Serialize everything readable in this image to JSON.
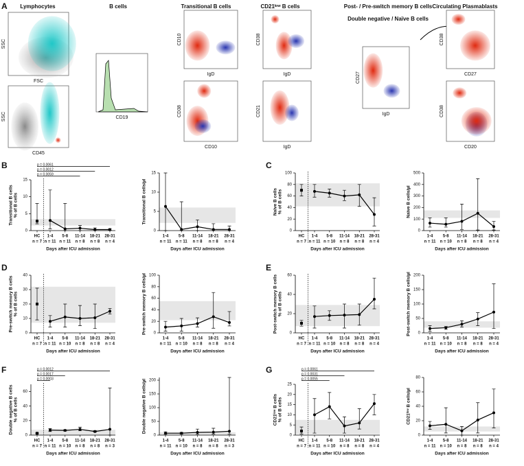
{
  "panels": [
    "A",
    "B",
    "C",
    "D",
    "E",
    "F",
    "G"
  ],
  "flow": {
    "titles": [
      "Lymphocytes",
      "B cells",
      "Transitional B cells",
      "CD21ˡᵒʷ B cells",
      "Post- / Pre-switch  memory B cells",
      "Double negative / Naïve B cells",
      "Circulating Plasmablasts"
    ],
    "plots": [
      {
        "x": "FSC",
        "y": "SSC"
      },
      {
        "x": "CD45",
        "y": "SSC"
      },
      {
        "x": "CD19"
      },
      {
        "x": "IgD",
        "y": "CD10"
      },
      {
        "x": "CD10",
        "y": "CD38"
      },
      {
        "x": "IgD",
        "y": "CD38"
      },
      {
        "x": "IgD",
        "y": "CD21"
      },
      {
        "x": "IgD",
        "y": "CD27"
      },
      {
        "x": "CD27",
        "y": "CD38"
      },
      {
        "x": "CD20",
        "y": "CD38"
      }
    ]
  },
  "chart_data": [
    {
      "type": "line",
      "ylabel": [
        "Transitional B cells",
        "% of B cells"
      ],
      "xlabel": "Days after ICU admission",
      "categories": [
        "HC",
        "1-4",
        "5-8",
        "11-14",
        "18-21",
        "28-31"
      ],
      "n": [
        "n = 7",
        "n = 11",
        "n = 11",
        "n = 8",
        "n = 8",
        "n = 4"
      ],
      "values": [
        2.8,
        3.0,
        0.5,
        0.7,
        0.3,
        0.3
      ],
      "err_low": [
        2,
        0.5,
        0,
        0,
        0,
        0.1
      ],
      "err_high": [
        8,
        12,
        8,
        1.5,
        0.8,
        0.6
      ],
      "reference_range": [
        1.5,
        3.4
      ],
      "ylim": [
        0,
        15
      ],
      "yticks": [
        0,
        5,
        10,
        15
      ],
      "separate_first": true,
      "color": "#000000",
      "band_color": "#e6e6e6",
      "annotations": [
        {
          "text": "p = 0.0061",
          "from": "HC",
          "to": "28-31"
        },
        {
          "text": "p = 0.0012",
          "from": "HC",
          "to": "18-21"
        },
        {
          "text": "p = 0.0059",
          "from": "HC",
          "to": "11-14"
        }
      ]
    },
    {
      "type": "line",
      "ylabel": [
        "Transitional B cells/µl"
      ],
      "xlabel": "Days after ICU admission",
      "categories": [
        "1-4",
        "5-8",
        "11-14",
        "18-21",
        "28-31"
      ],
      "n": [
        "n = 11",
        "n = 11",
        "n = 8",
        "n = 8",
        "n = 4"
      ],
      "values": [
        6.3,
        0.3,
        1,
        0.3,
        0.3
      ],
      "err_low": [
        0,
        0,
        0,
        0,
        0
      ],
      "err_high": [
        15,
        7.5,
        2.8,
        1.8,
        1.2
      ],
      "reference_range": [
        2,
        6
      ],
      "ylim": [
        0,
        15
      ],
      "yticks": [
        0,
        5,
        10,
        15
      ],
      "separate_first": false,
      "color": "#000000",
      "band_color": "#e6e6e6"
    },
    {
      "type": "line",
      "ylabel": [
        "Naïve B cells",
        "% of B cells"
      ],
      "xlabel": "Days after ICU admission",
      "categories": [
        "HC",
        "1-4",
        "5-8",
        "11-14",
        "18-21",
        "28-31"
      ],
      "n": [
        "n = 7",
        "n = 11",
        "n = 10",
        "n = 8",
        "n = 8",
        "n = 4"
      ],
      "values": [
        70,
        68,
        65,
        60,
        62,
        28
      ],
      "err_low": [
        60,
        58,
        58,
        52,
        42,
        8
      ],
      "err_high": [
        80,
        80,
        72,
        70,
        80,
        57
      ],
      "reference_range": [
        42,
        82
      ],
      "ylim": [
        0,
        100
      ],
      "yticks": [
        0,
        20,
        40,
        60,
        80,
        100
      ],
      "separate_first": true,
      "color": "#000000",
      "band_color": "#e6e6e6"
    },
    {
      "type": "line",
      "ylabel": [
        "Naïve B cells/µl"
      ],
      "xlabel": "Days after ICU admission",
      "categories": [
        "1-4",
        "5-8",
        "11-14",
        "18-21",
        "28-31"
      ],
      "n": [
        "n = 11",
        "n = 10",
        "n = 8",
        "n = 8",
        "n = 4"
      ],
      "values": [
        65,
        55,
        80,
        150,
        35
      ],
      "err_low": [
        30,
        30,
        10,
        5,
        5
      ],
      "err_high": [
        110,
        110,
        230,
        450,
        80
      ],
      "reference_range": [
        110,
        175
      ],
      "ylim": [
        0,
        500
      ],
      "yticks": [
        0,
        100,
        200,
        300,
        400,
        500
      ],
      "separate_first": false,
      "color": "#000000",
      "band_color": "#e6e6e6"
    },
    {
      "type": "line",
      "ylabel": [
        "Pre-switch memory B cells",
        "% of B cells"
      ],
      "xlabel": "Days after ICU admission",
      "categories": [
        "HC",
        "1-4",
        "5-8",
        "11-14",
        "18-21",
        "28-31"
      ],
      "n": [
        "n = 7",
        "n = 11",
        "n = 10",
        "n = 8",
        "n = 8",
        "n = 4"
      ],
      "values": [
        20,
        8,
        11,
        10,
        10.5,
        15
      ],
      "err_low": [
        9,
        4,
        4,
        5,
        3,
        13
      ],
      "err_high": [
        31,
        12,
        20,
        19,
        20,
        17
      ],
      "reference_range": [
        7,
        32
      ],
      "ylim": [
        0,
        40
      ],
      "yticks": [
        0,
        10,
        20,
        30,
        40
      ],
      "separate_first": true,
      "color": "#000000",
      "band_color": "#e6e6e6"
    },
    {
      "type": "line",
      "ylabel": [
        "Pre-switch memory B cells/µl"
      ],
      "xlabel": "Days after ICU admission",
      "categories": [
        "1-4",
        "5-8",
        "11-14",
        "18-21",
        "28-31"
      ],
      "n": [
        "n = 11",
        "n = 10",
        "n = 8",
        "n = 8",
        "n = 4"
      ],
      "values": [
        10,
        12,
        16,
        28,
        18
      ],
      "err_low": [
        3,
        3,
        10,
        8,
        12
      ],
      "err_high": [
        20,
        25,
        26,
        70,
        37
      ],
      "reference_range": [
        22,
        55
      ],
      "ylim": [
        0,
        100
      ],
      "yticks": [
        0,
        20,
        40,
        60,
        80,
        100
      ],
      "separate_first": false,
      "color": "#000000",
      "band_color": "#e6e6e6"
    },
    {
      "type": "line",
      "ylabel": [
        "Post-switch memory B cells",
        "% of B cells"
      ],
      "xlabel": "Days after ICU admission",
      "categories": [
        "HC",
        "1-4",
        "5-8",
        "11-14",
        "18-21",
        "28-31"
      ],
      "n": [
        "n = 7",
        "n = 11",
        "n = 10",
        "n = 8",
        "n = 8",
        "n = 4"
      ],
      "values": [
        10,
        17,
        18,
        18.5,
        19,
        35
      ],
      "err_low": [
        7,
        5,
        13,
        5,
        8,
        25
      ],
      "err_high": [
        13,
        28,
        23,
        30,
        30,
        57
      ],
      "reference_range": [
        7,
        29
      ],
      "ylim": [
        0,
        60
      ],
      "yticks": [
        0,
        20,
        40,
        60
      ],
      "separate_first": true,
      "color": "#000000",
      "band_color": "#e6e6e6"
    },
    {
      "type": "line",
      "ylabel": [
        "Post-switch memory B cells/µl"
      ],
      "xlabel": "Days after ICU admission",
      "categories": [
        "1-4",
        "5-8",
        "11-14",
        "18-21",
        "28-31"
      ],
      "n": [
        "n = 11",
        "n = 10",
        "n = 8",
        "n = 8",
        "n = 4"
      ],
      "values": [
        15,
        18,
        30,
        48,
        72
      ],
      "err_low": [
        5,
        12,
        20,
        25,
        15
      ],
      "err_high": [
        25,
        22,
        42,
        70,
        170
      ],
      "reference_range": [
        18,
        40
      ],
      "ylim": [
        0,
        200
      ],
      "yticks": [
        0,
        50,
        100,
        150,
        200
      ],
      "separate_first": false,
      "color": "#000000",
      "band_color": "#e6e6e6"
    },
    {
      "type": "line",
      "ylabel": [
        "Double negative B cells",
        "% of B cells"
      ],
      "xlabel": "Days after ICU admission",
      "categories": [
        "HC",
        "1-4",
        "5-8",
        "11-14",
        "18-21",
        "28-31"
      ],
      "n": [
        "n = 7",
        "n = 11",
        "n = 10",
        "n = 8",
        "n = 8",
        "n = 3"
      ],
      "values": [
        2.5,
        7,
        6.5,
        8,
        5,
        8
      ],
      "err_low": [
        2,
        5,
        5.5,
        6,
        4,
        0
      ],
      "err_high": [
        3,
        9,
        7.5,
        11,
        6,
        65
      ],
      "reference_range": [
        0,
        7.5
      ],
      "ylim": [
        0,
        70
      ],
      "yticks": [
        0,
        20,
        40,
        60
      ],
      "separate_first": true,
      "color": "#000000",
      "band_color": "#e6e6e6",
      "annotations": [
        {
          "text": "p = 0.0012",
          "from": "HC",
          "to": "28-31"
        },
        {
          "text": "p = 0.0017",
          "from": "HC",
          "to": "5-8"
        },
        {
          "text": "p = 0.0003",
          "from": "HC",
          "to": "1-4"
        }
      ]
    },
    {
      "type": "line",
      "ylabel": [
        "Double negative B cells/µl"
      ],
      "xlabel": "Days after ICU admission",
      "categories": [
        "1-4",
        "5-8",
        "11-14",
        "18-21",
        "28-31"
      ],
      "n": [
        "n = 11",
        "n = 10",
        "n = 8",
        "n = 8",
        "n = 3"
      ],
      "values": [
        7,
        7,
        10,
        11,
        14
      ],
      "err_low": [
        3,
        4,
        3,
        4,
        3
      ],
      "err_high": [
        12,
        10,
        22,
        25,
        210
      ],
      "reference_range": [
        0,
        10
      ],
      "ylim": [
        0,
        210
      ],
      "yticks": [
        0,
        50,
        100,
        150,
        200
      ],
      "separate_first": false,
      "color": "#000000",
      "band_color": "#e6e6e6"
    },
    {
      "type": "line",
      "ylabel": [
        "CD21ˡᵒʷ B cells",
        "% of B cells"
      ],
      "xlabel": "Days after ICU admission",
      "categories": [
        "HC",
        "1-4",
        "5-8",
        "11-14",
        "18-21",
        "28-31"
      ],
      "n": [
        "n = 7",
        "n = 11",
        "n = 10",
        "n = 8",
        "n = 8",
        "n = 4"
      ],
      "values": [
        2,
        10,
        14,
        4.5,
        6,
        15.5
      ],
      "err_low": [
        0.5,
        1,
        8,
        1,
        3,
        10
      ],
      "err_high": [
        4,
        18,
        21,
        9,
        13,
        20
      ],
      "reference_range": [
        0.5,
        7.5
      ],
      "ylim": [
        0,
        25
      ],
      "yticks": [
        0,
        5,
        10,
        15,
        20,
        25
      ],
      "separate_first": true,
      "color": "#000000",
      "band_color": "#e6e6e6",
      "annotations": [
        {
          "text": "p = 0.0061",
          "from": "HC",
          "to": "28-31"
        },
        {
          "text": "p = 0.0031",
          "from": "HC",
          "to": "11-14"
        },
        {
          "text": "p = 0.0055",
          "from": "HC",
          "to": "5-8"
        }
      ]
    },
    {
      "type": "line",
      "ylabel": [
        "CD21ˡᵒʷ B cells/µl"
      ],
      "xlabel": "Days after ICU admission",
      "categories": [
        "1-4",
        "5-8",
        "11-14",
        "18-21",
        "28-31"
      ],
      "n": [
        "n = 11",
        "n = 10",
        "n = 8",
        "n = 8",
        "n = 4"
      ],
      "values": [
        13,
        15,
        6,
        21,
        31
      ],
      "err_low": [
        8,
        3,
        0,
        3,
        10
      ],
      "err_high": [
        19,
        38,
        12,
        45,
        64
      ],
      "reference_range": [
        5,
        12
      ],
      "ylim": [
        0,
        80
      ],
      "yticks": [
        0,
        20,
        40,
        60,
        80
      ],
      "separate_first": false,
      "color": "#000000",
      "band_color": "#e6e6e6"
    }
  ]
}
